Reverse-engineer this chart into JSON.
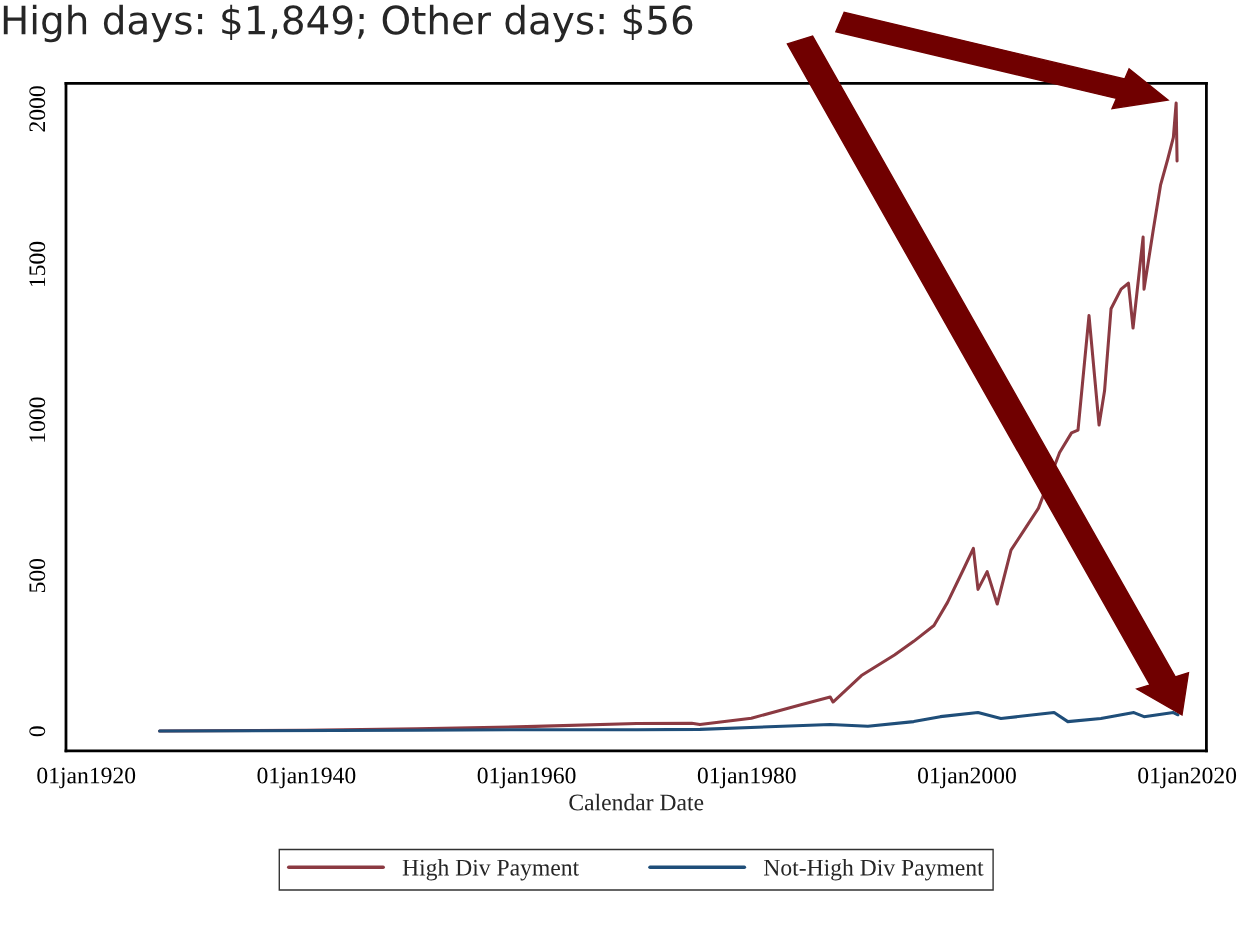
{
  "chart_data": {
    "type": "line",
    "title": "High days: $1,849; Other days: $56",
    "xlabel": "Calendar Date",
    "xlim": [
      "1918-03",
      "2021-10"
    ],
    "xticks": [
      {
        "value": "1920-01-01",
        "label": "01jan1920"
      },
      {
        "value": "1940-01-01",
        "label": "01jan1940"
      },
      {
        "value": "1960-01-01",
        "label": "01jan1960"
      },
      {
        "value": "1980-01-01",
        "label": "01jan1980"
      },
      {
        "value": "2000-01-01",
        "label": "01jan2000"
      },
      {
        "value": "2020-01-01",
        "label": "01jan2020"
      }
    ],
    "ylim": [
      -63,
      2082
    ],
    "yticks": [
      0,
      500,
      1000,
      1500,
      2000
    ],
    "grid": false,
    "legend": "bottom",
    "line_style": "solid",
    "marker": "none",
    "series": [
      {
        "name": "High Div Payment",
        "color": "#8b3a42",
        "x": [
          "1926-09",
          "1940-01",
          "1950-01",
          "1960-01",
          "1970-01",
          "1975-01",
          "1975-10",
          "1980-06",
          "1984-12",
          "1987-08",
          "1987-11",
          "1990-06",
          "1993-06",
          "1995-03",
          "1997-01",
          "1998-04",
          "1999-09",
          "2000-08",
          "2001-01",
          "2001-11",
          "2002-10",
          "2004-01",
          "2005-03",
          "2006-07",
          "2007-07",
          "2008-06",
          "2009-01",
          "2009-03",
          "2009-07",
          "2010-02",
          "2011-02",
          "2012-01",
          "2012-07",
          "2013-02",
          "2014-01",
          "2014-09",
          "2015-02",
          "2016-01",
          "2016-02",
          "2016-12",
          "2017-08",
          "2018-04",
          "2018-10",
          "2019-01",
          "2019-02"
        ],
        "values": [
          1,
          3,
          8,
          15,
          25,
          26,
          22,
          42,
          85,
          110,
          94,
          179,
          245,
          289,
          340,
          415,
          519,
          588,
          456,
          513,
          409,
          582,
          645,
          717,
          null,
          896,
          null,
          null,
          959,
          968,
          1336,
          984,
          1094,
          1358,
          1421,
          1440,
          1296,
          1588,
          1421,
          1610,
          1755,
          1840,
          1909,
          2019,
          1833
        ]
      },
      {
        "name": "Not-High Div Payment",
        "color": "#1f4e79",
        "x": [
          "1926-09",
          "1950-01",
          "1960-01",
          "1970-01",
          "1975-10",
          "1987-08",
          "1991-01",
          "1995-03",
          "1997-08",
          "2001-01",
          "2003-02",
          "2007-12",
          "2009-03",
          "2012-03",
          "2015-03",
          "2016-02",
          "2018-10",
          "2019-03"
        ],
        "values": [
          1,
          3,
          5,
          5,
          6,
          22,
          16,
          31,
          47,
          60,
          41,
          60,
          31,
          41,
          60,
          47,
          60,
          53
        ]
      }
    ]
  }
}
